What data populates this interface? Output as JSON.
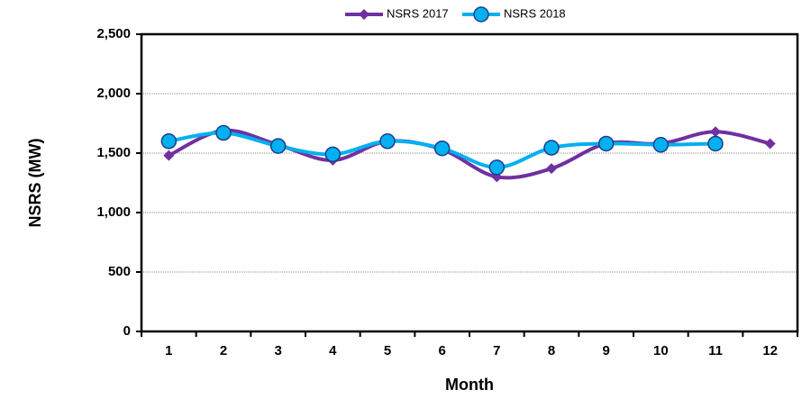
{
  "chart_data": {
    "type": "line",
    "x_label": "Month",
    "y_label": "NSRS (MW)",
    "categories": [
      "1",
      "2",
      "3",
      "4",
      "5",
      "6",
      "7",
      "8",
      "9",
      "10",
      "11",
      "12"
    ],
    "series": [
      {
        "name": "NSRS 2017",
        "color": "#7030a0",
        "marker": "diamond",
        "values": [
          1480,
          1690,
          1570,
          1440,
          1600,
          1530,
          1300,
          1370,
          1580,
          1580,
          1680,
          1580
        ]
      },
      {
        "name": "NSRS 2018",
        "color": "#00b0f0",
        "marker": "circle",
        "values": [
          1600,
          1670,
          1560,
          1490,
          1600,
          1540,
          1380,
          1545,
          1580,
          1570,
          1580,
          null
        ]
      }
    ],
    "ylim": [
      0,
      2500
    ],
    "yticks": [
      0,
      500,
      {
        "value": 1000,
        "label": "1,000"
      },
      {
        "value": 1500,
        "label": "1,500"
      },
      {
        "value": 2000,
        "label": "2,000"
      },
      {
        "value": 2500,
        "label": "2,500"
      }
    ],
    "grid": true,
    "legend": "top"
  }
}
